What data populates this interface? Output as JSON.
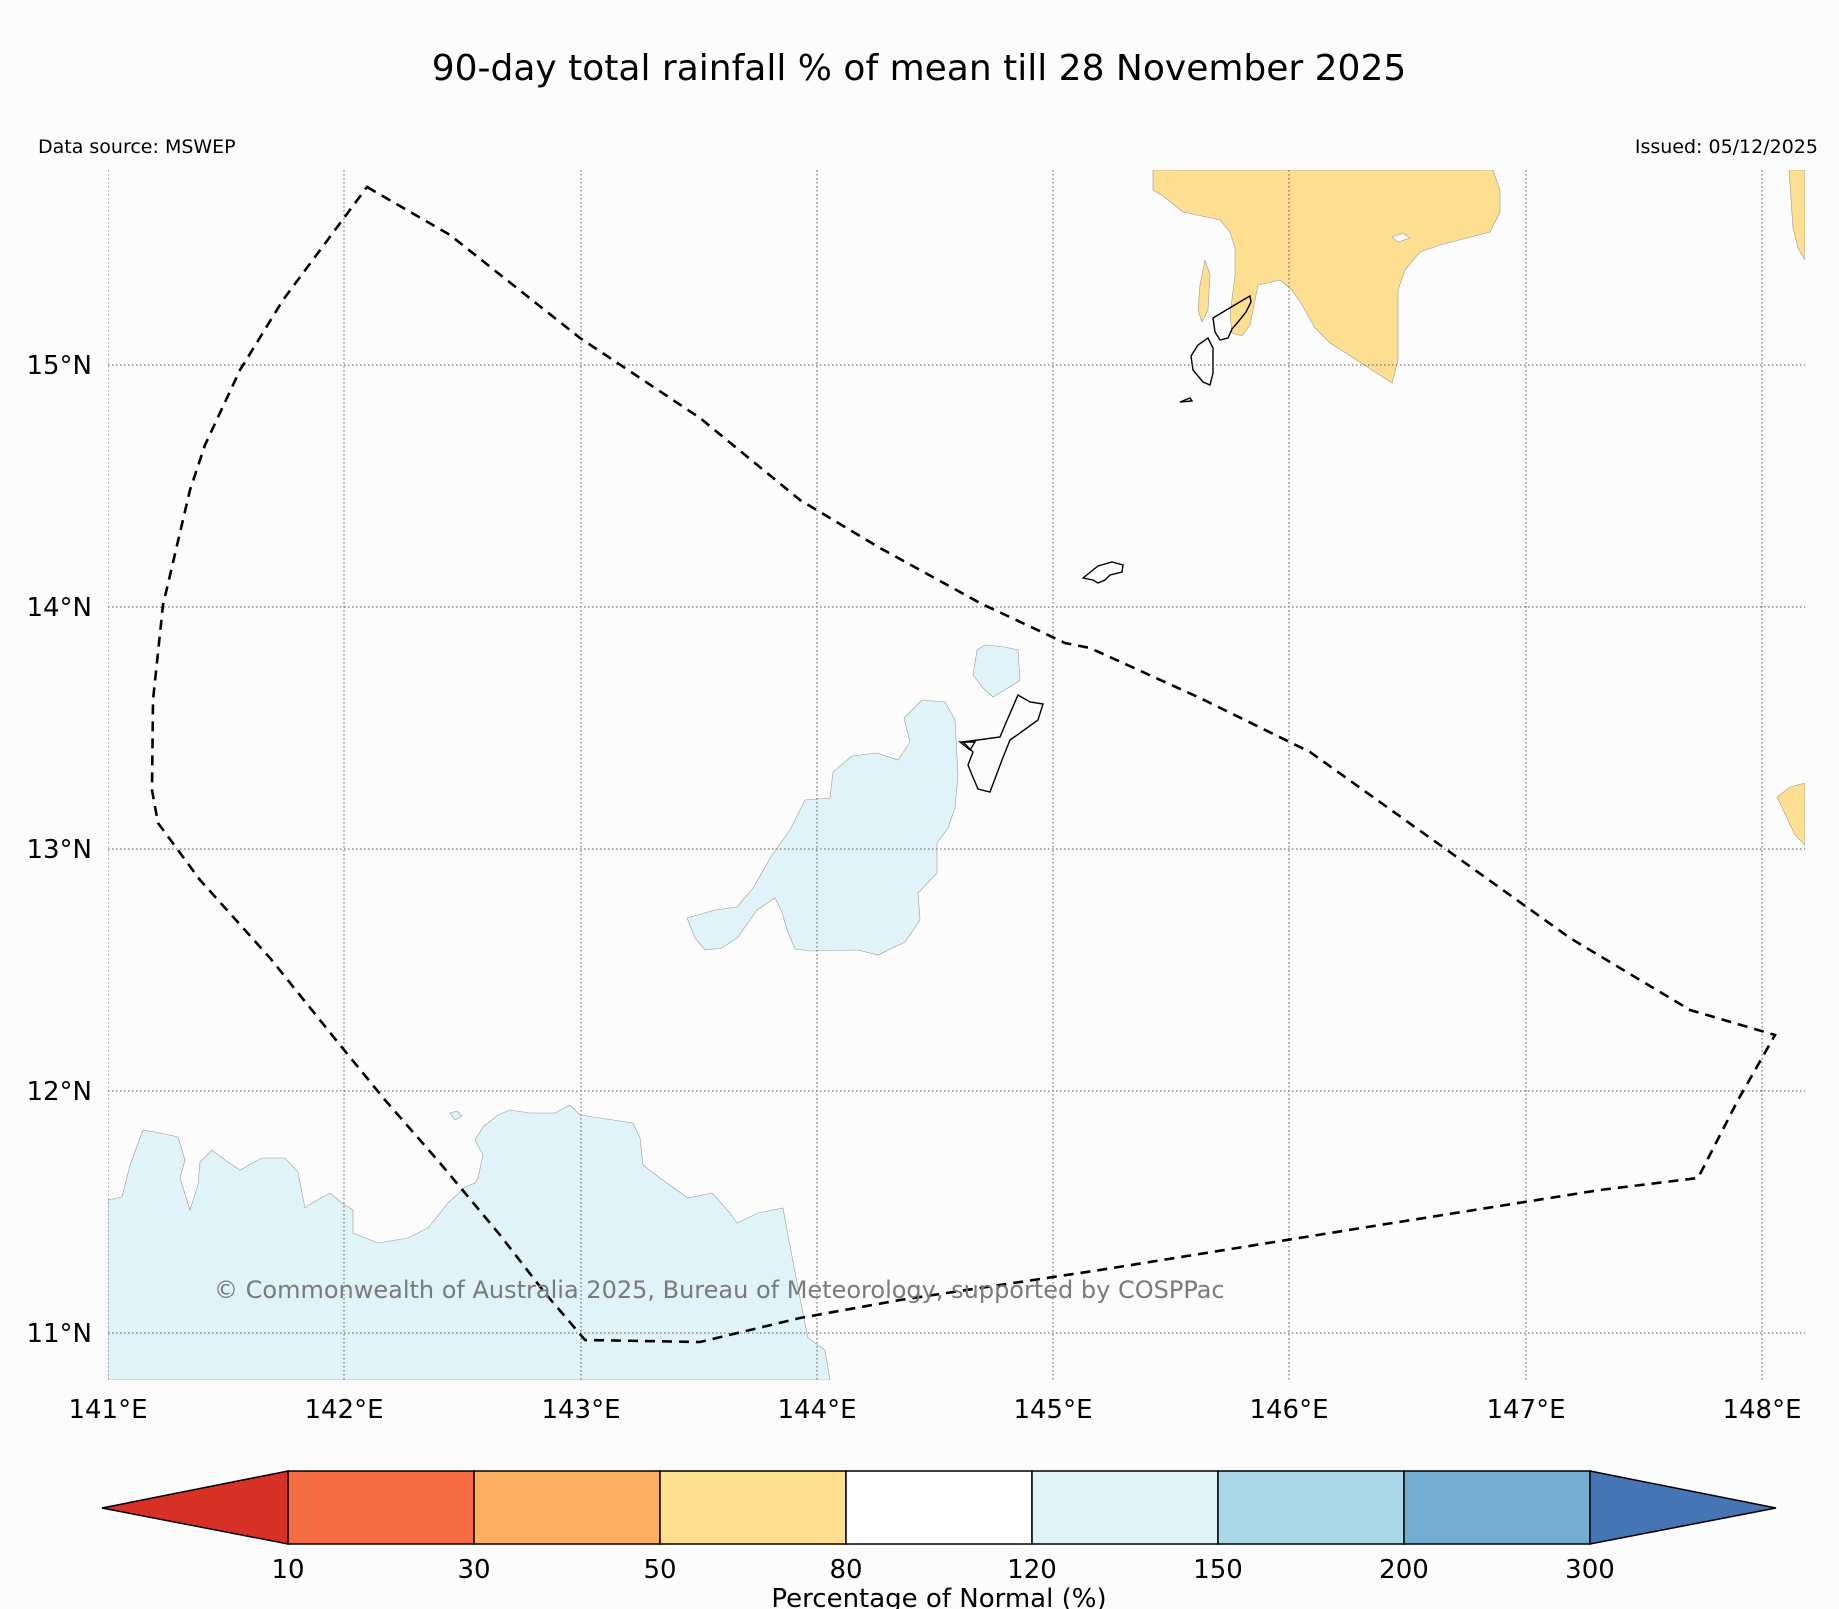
{
  "title": "90-day total rainfall % of mean till 28 November 2025",
  "data_source": "Data source: MSWEP",
  "issued": "Issued: 05/12/2025",
  "copyright": "© Commonwealth of Australia 2025, Bureau of Meteorology, supported by COSPPac",
  "map": {
    "lon_range": [
      141.0,
      148.2
    ],
    "lat_range": [
      10.8,
      15.8
    ],
    "lon_ticks": [
      "141°E",
      "142°E",
      "143°E",
      "144°E",
      "145°E",
      "146°E",
      "147°E",
      "148°E"
    ],
    "lat_ticks": [
      "15°N",
      "14°N",
      "13°N",
      "12°N",
      "11°N"
    ],
    "grid": true,
    "colors": {
      "below_normal_50_80": "#fedf92",
      "above_normal_120_150": "#e0f3f8",
      "boundary": "#000000",
      "background": "#fcfcfc"
    }
  },
  "colorbar": {
    "title": "Percentage of Normal (%)",
    "labels": [
      "10",
      "30",
      "50",
      "80",
      "120",
      "150",
      "200",
      "300"
    ],
    "colors": [
      "#d73027",
      "#f46d43",
      "#fdae61",
      "#fee090",
      "#ffffff",
      "#e0f3f8",
      "#abd9e9",
      "#74add1",
      "#4575b4"
    ]
  }
}
